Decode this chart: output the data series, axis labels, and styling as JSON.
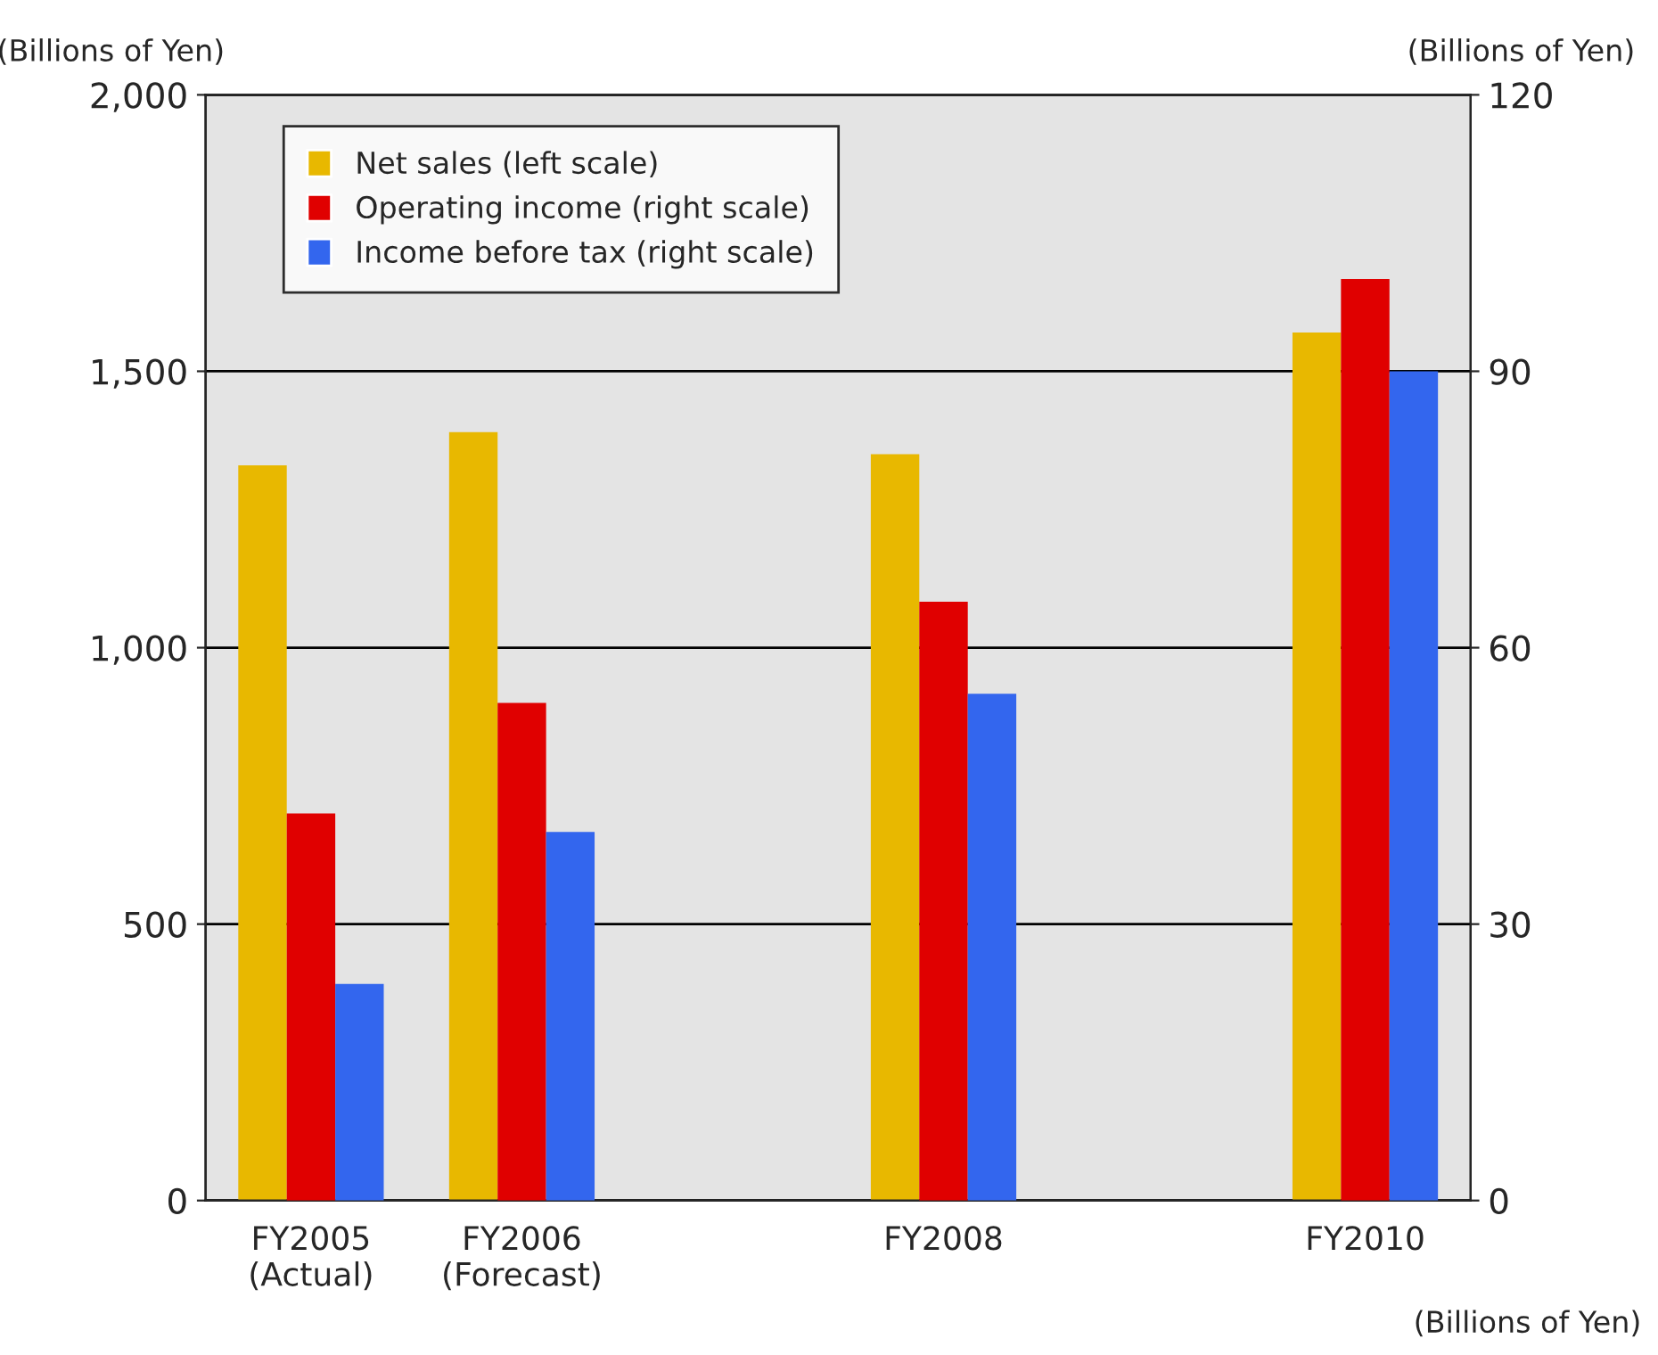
{
  "chart_data": {
    "type": "bar",
    "ylabel": "(Billions of Yen)",
    "y2label": "(Billions of Yen)",
    "categories": [
      "FY2005\n(Actual)",
      "FY2006\n(Forecast)",
      null,
      "FY2008",
      null,
      "FY2010"
    ],
    "series": [
      {
        "name": "Net sales (left scale)",
        "color": "#e8b800",
        "values": [
          1330,
          1390,
          null,
          1350,
          null,
          1570
        ]
      },
      {
        "name": "Operating income (right scale)",
        "color": "#e00000",
        "axis": "y2",
        "values": [
          42,
          54,
          null,
          65,
          null,
          100
        ]
      },
      {
        "name": "Income before tax (right scale)",
        "color": "#3366ee",
        "axis": "y2",
        "values": [
          23.5,
          40,
          null,
          55,
          null,
          90
        ]
      }
    ],
    "ylim": [
      0,
      2000
    ],
    "yticks": [
      0,
      {
        "value": 500,
        "label": "500"
      },
      {
        "value": 1000,
        "label": "1,000"
      },
      {
        "value": 1500,
        "label": "1,500"
      },
      {
        "value": 2000,
        "label": "2,000"
      }
    ],
    "y2lim": [
      0,
      120
    ],
    "y2ticks": [
      0,
      30,
      60,
      90,
      120
    ],
    "grid": "y",
    "legend": "top left",
    "annotations": [
      "(Billions of Yen)"
    ]
  }
}
